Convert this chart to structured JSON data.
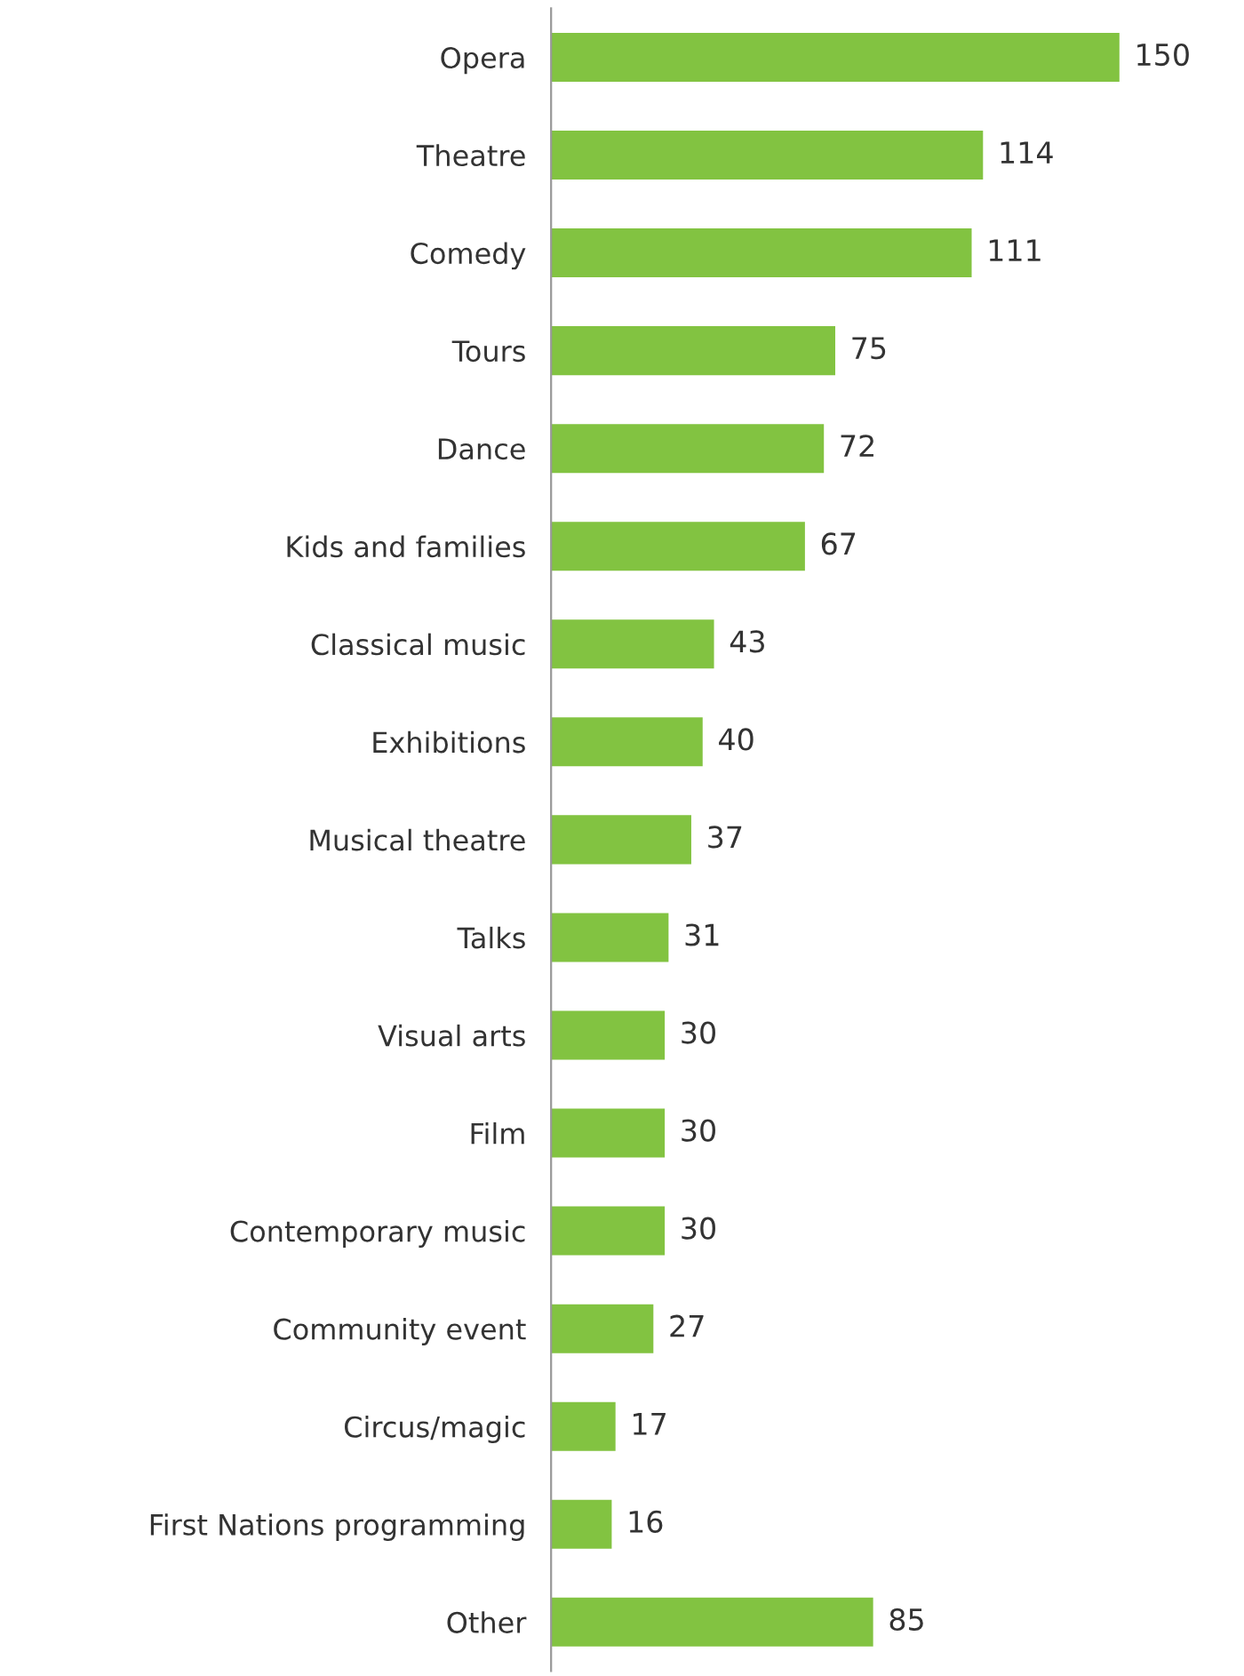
{
  "chart_data": {
    "type": "bar",
    "orientation": "horizontal",
    "data_labels": true,
    "grid": false,
    "legend": false,
    "color": "#82c341",
    "categories": [
      "Opera",
      "Theatre",
      "Comedy",
      "Tours",
      "Dance",
      "Kids and families",
      "Classical music",
      "Exhibitions",
      "Musical theatre",
      "Talks",
      "Visual arts",
      "Film",
      "Contemporary music",
      "Community event",
      "Circus/magic",
      "First Nations programming",
      "Other"
    ],
    "values": [
      150,
      114,
      111,
      75,
      72,
      67,
      43,
      40,
      37,
      31,
      30,
      30,
      30,
      27,
      17,
      16,
      85
    ]
  }
}
